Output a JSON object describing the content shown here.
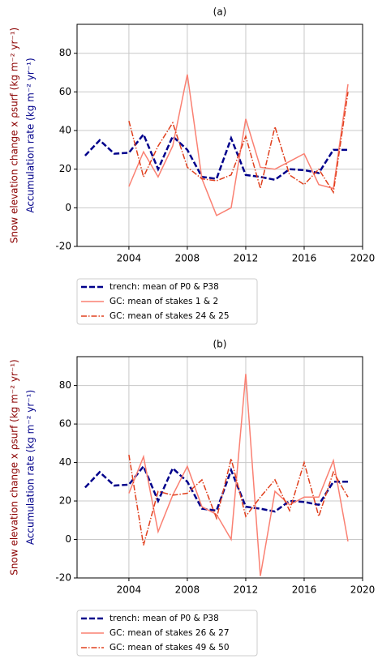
{
  "chart_data": [
    {
      "type": "line",
      "title": "(a)",
      "y_label": "Snow elevation change x ρsurf (kg m⁻² yr⁻¹)",
      "y_label_color": "#8b0000",
      "y_label2": "Accumulation rate (kg m⁻² yr⁻¹)",
      "y_label2_color": "#00008b",
      "x": [
        2001,
        2002,
        2003,
        2004,
        2005,
        2006,
        2007,
        2008,
        2009,
        2010,
        2011,
        2012,
        2013,
        2014,
        2015,
        2016,
        2017,
        2018,
        2019
      ],
      "xlim": [
        2000.45,
        2020
      ],
      "xticks": [
        2004,
        2008,
        2012,
        2016,
        2020
      ],
      "ylim": [
        -20,
        95
      ],
      "yticks": [
        -20,
        0,
        20,
        40,
        60,
        80
      ],
      "grid": true,
      "legend": "below",
      "series": [
        {
          "name": "trench: mean of P0 & P38",
          "color": "#00008b",
          "linestyle": "dashed",
          "values": [
            27,
            35,
            28,
            28.5,
            38,
            20,
            37,
            30,
            16,
            15,
            36,
            17,
            16,
            14.5,
            20,
            19.5,
            18,
            30,
            30
          ]
        },
        {
          "name": "GC: mean of stakes 1 & 2",
          "color": "#fa8072",
          "linestyle": "solid",
          "values": [
            null,
            null,
            null,
            11,
            29,
            16,
            32,
            69,
            15,
            -4,
            0,
            46,
            21,
            20,
            24,
            28,
            12,
            10,
            64
          ]
        },
        {
          "name": "GC: mean of stakes 24 & 25",
          "color": "#e0401e",
          "linestyle": "dashdot",
          "values": [
            null,
            null,
            null,
            45,
            16,
            32,
            44,
            21,
            15,
            14,
            17,
            37,
            10,
            42,
            17,
            12,
            20,
            8,
            60
          ]
        }
      ]
    },
    {
      "type": "line",
      "title": "(b)",
      "y_label": "Snow elevation change x ρsurf (kg m⁻² yr⁻¹)",
      "y_label_color": "#8b0000",
      "y_label2": "Accumulation rate (kg m⁻² yr⁻¹)",
      "y_label2_color": "#00008b",
      "x": [
        2001,
        2002,
        2003,
        2004,
        2005,
        2006,
        2007,
        2008,
        2009,
        2010,
        2011,
        2012,
        2013,
        2014,
        2015,
        2016,
        2017,
        2018,
        2019
      ],
      "xlim": [
        2000.45,
        2020
      ],
      "xticks": [
        2004,
        2008,
        2012,
        2016,
        2020
      ],
      "ylim": [
        -20,
        95
      ],
      "yticks": [
        -20,
        0,
        20,
        40,
        60,
        80
      ],
      "grid": true,
      "legend": "below",
      "series": [
        {
          "name": "trench: mean of P0 & P38",
          "color": "#00008b",
          "linestyle": "dashed",
          "values": [
            27,
            35,
            28,
            28.5,
            38,
            20,
            37,
            30,
            16,
            15,
            36,
            17,
            16,
            14.5,
            20,
            19.5,
            18,
            30,
            30
          ]
        },
        {
          "name": "GC: mean of stakes 26 & 27",
          "color": "#fa8072",
          "linestyle": "solid",
          "values": [
            null,
            null,
            null,
            24,
            43,
            4,
            23,
            38,
            17,
            13,
            0,
            86,
            -19,
            25,
            18,
            22,
            22,
            41,
            -1
          ]
        },
        {
          "name": "GC: mean of stakes 49 & 50",
          "color": "#e0401e",
          "linestyle": "dashdot",
          "values": [
            null,
            null,
            null,
            44,
            -3,
            25,
            23,
            24,
            31,
            11,
            42,
            12,
            22,
            31,
            15,
            40,
            12,
            35,
            22
          ]
        }
      ]
    }
  ]
}
